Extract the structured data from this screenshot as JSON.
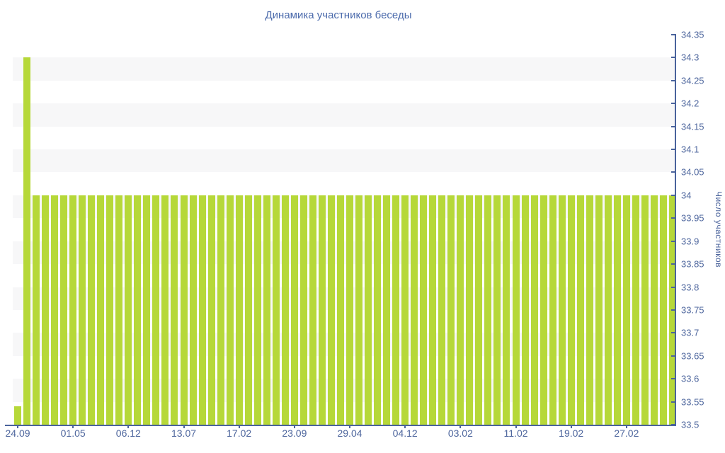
{
  "title": "Динамика участников беседы",
  "chart_data": {
    "type": "bar",
    "title": "Динамика участников беседы",
    "xlabel": "",
    "ylabel": "Число участников",
    "ylim": [
      33.5,
      34.35
    ],
    "ytick_step": 0.05,
    "ytick_labels": [
      "34.35",
      "34.3",
      "34.25",
      "34.2",
      "34.15",
      "34.1",
      "34.05",
      "34",
      "33.95",
      "33.9",
      "33.85",
      "33.8",
      "33.75",
      "33.7",
      "33.65",
      "33.6",
      "33.55",
      "33.5"
    ],
    "xtick_labels": [
      "24.09",
      "01.05",
      "06.12",
      "13.07",
      "17.02",
      "23.09",
      "29.04",
      "04.12",
      "03.02",
      "11.02",
      "19.02",
      "27.02"
    ],
    "xtick_every_n_bars": 6,
    "bar_count": 72,
    "values": [
      33.54,
      34.3,
      34,
      34,
      34,
      34,
      34,
      34,
      34,
      34,
      34,
      34,
      34,
      34,
      34,
      34,
      34,
      34,
      34,
      34,
      34,
      34,
      34,
      34,
      34,
      34,
      34,
      34,
      34,
      34,
      34,
      34,
      34,
      34,
      34,
      34,
      34,
      34,
      34,
      34,
      34,
      34,
      34,
      34,
      34,
      34,
      34,
      34,
      34,
      34,
      34,
      34,
      34,
      34,
      34,
      34,
      34,
      34,
      34,
      34,
      34,
      34,
      34,
      34,
      34,
      34,
      34,
      34,
      34,
      34,
      34,
      34
    ],
    "grid": "alternating horizontal bands",
    "legend": "none",
    "colors": {
      "bar": "#b6d839",
      "axis": "#4a639c",
      "labels": "#4f679e",
      "title": "#4c6bac",
      "band": "#f7f7f8",
      "background": "#ffffff"
    }
  }
}
